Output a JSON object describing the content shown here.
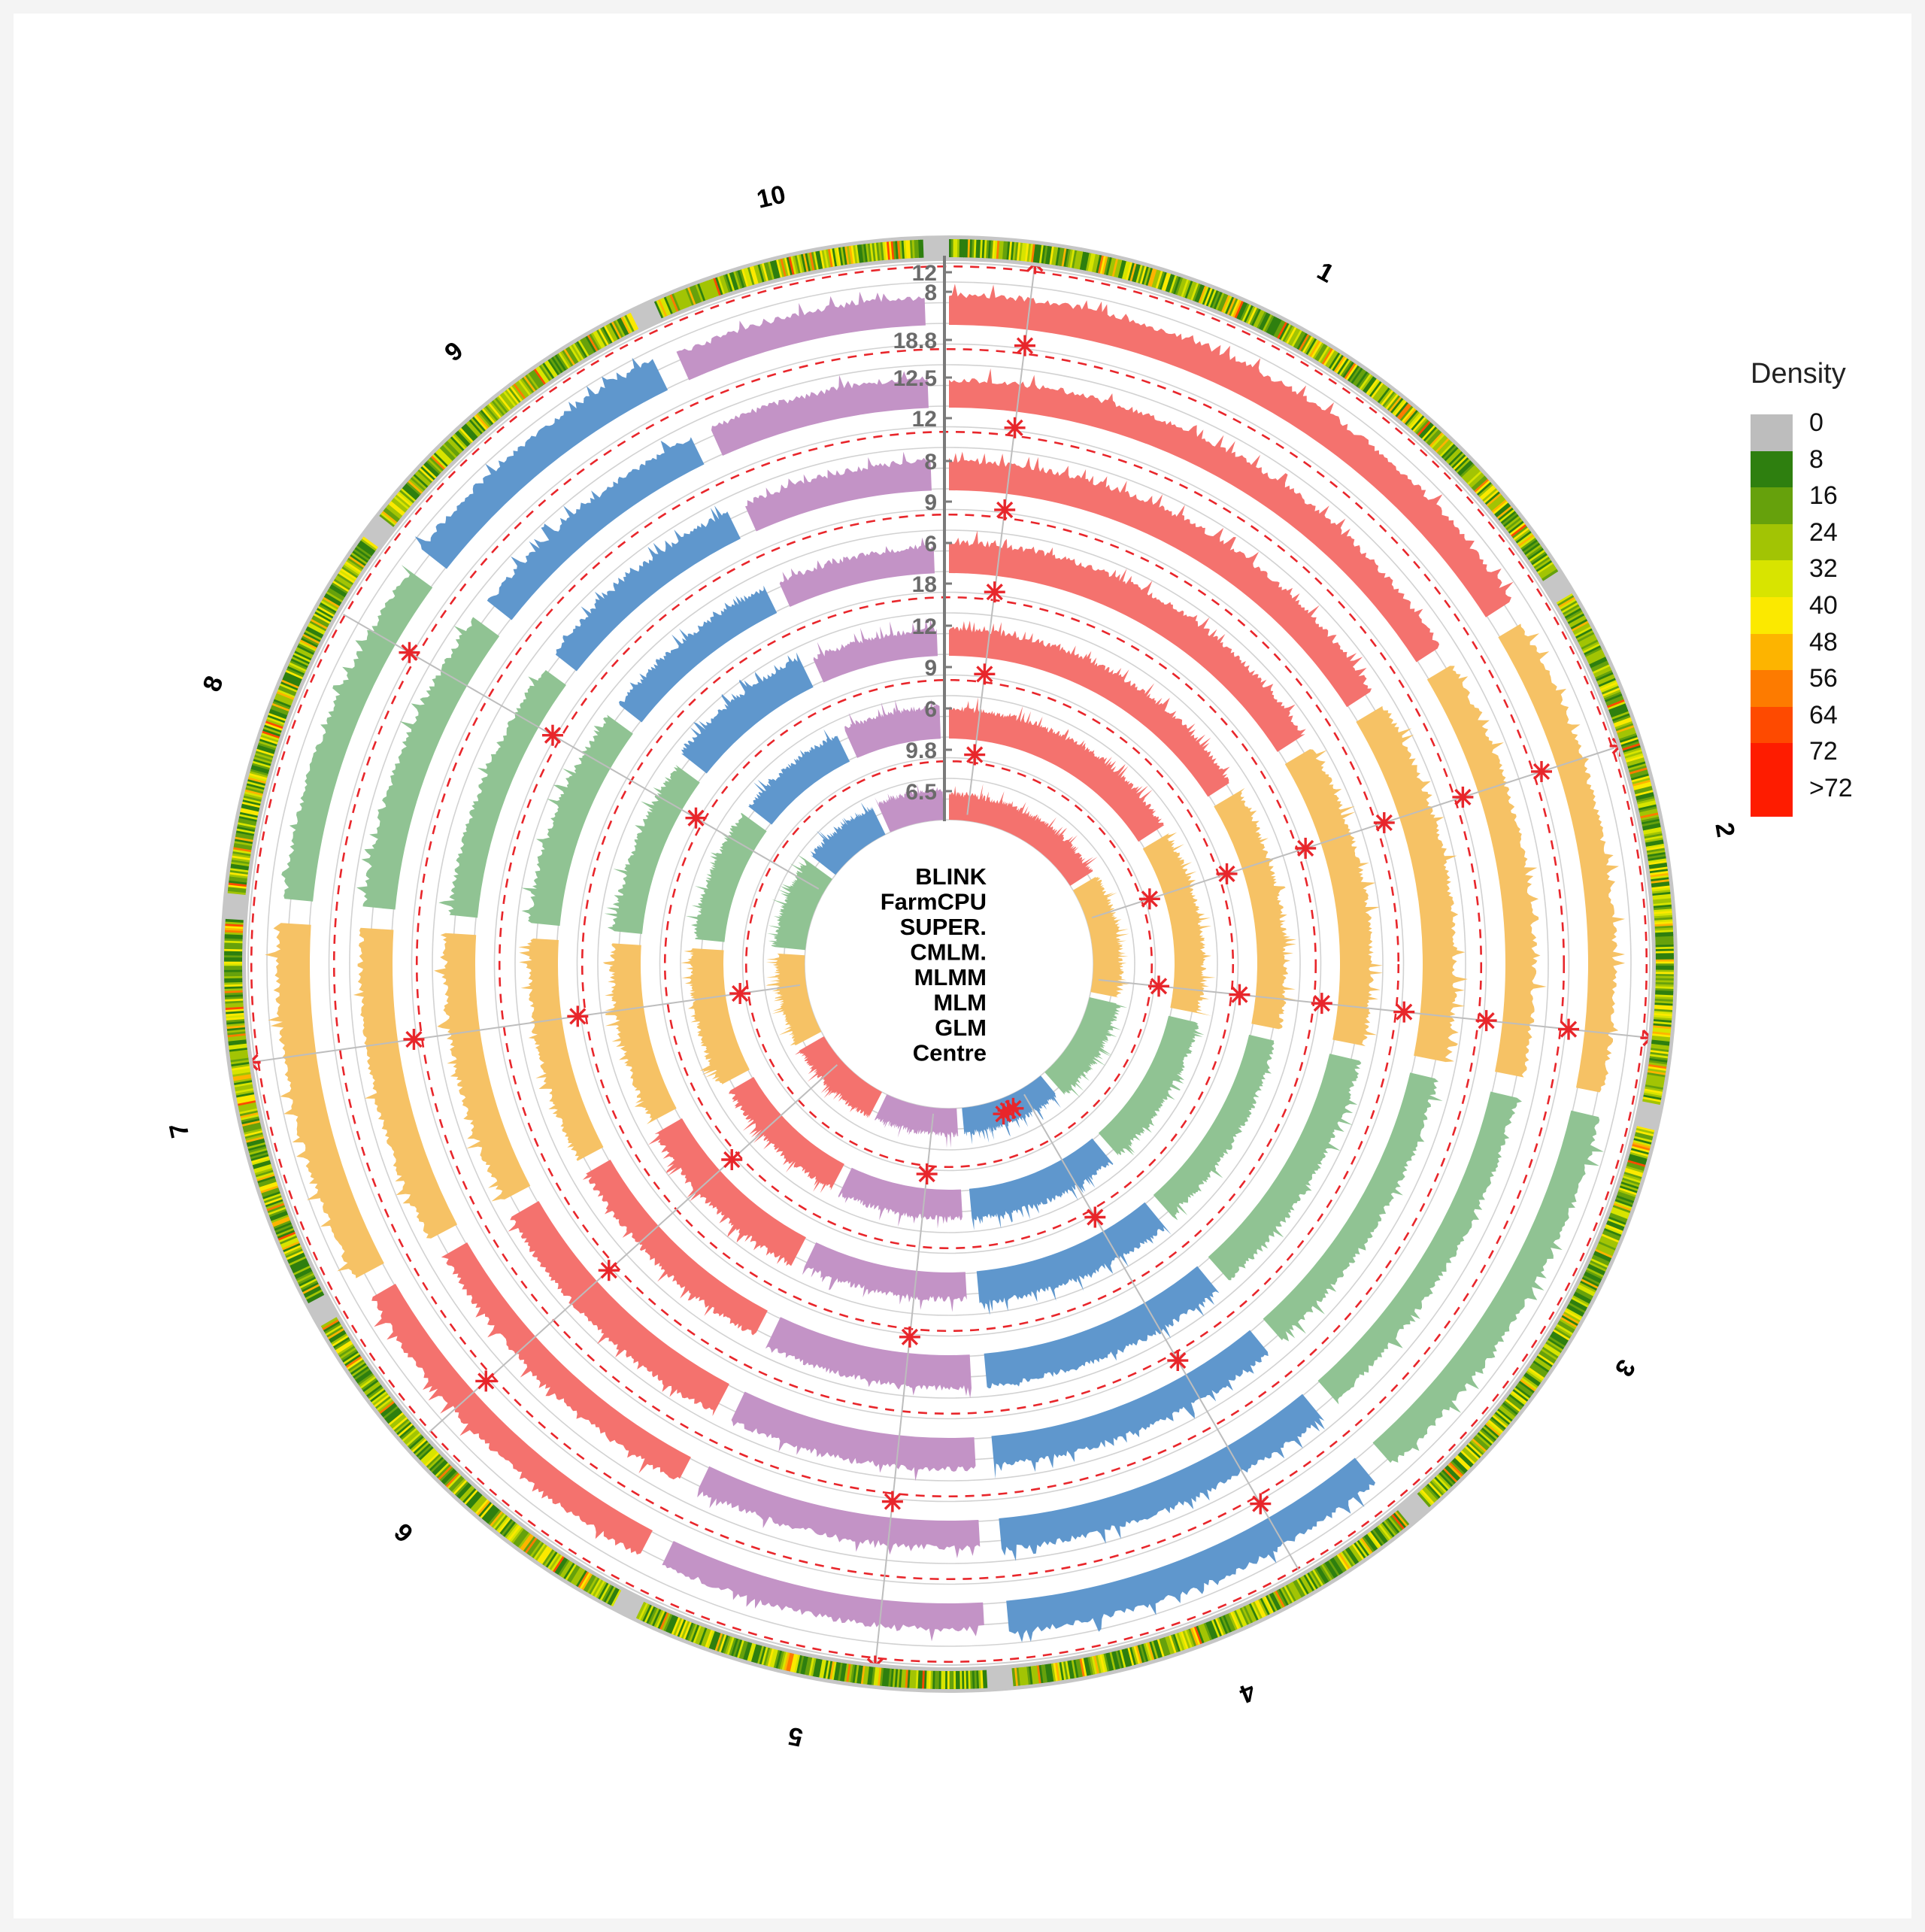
{
  "chart_data": {
    "type": "circular-manhattan",
    "title": "",
    "center_label": "Centre",
    "chromosomes": [
      "1",
      "2",
      "3",
      "4",
      "5",
      "6",
      "7",
      "8",
      "9",
      "10"
    ],
    "chromosome_colors": [
      "#f4726e",
      "#f6c265",
      "#90c393",
      "#5f97cd",
      "#c393c6",
      "#f4726e",
      "#f6c265",
      "#90c393",
      "#5f97cd",
      "#c393c6"
    ],
    "tracks_inner_to_outer": [
      {
        "method": "BLINK",
        "axis_ticks": [
          "6.5"
        ],
        "threshold_label": "6.5"
      },
      {
        "method": "FarmCPU",
        "axis_ticks": [
          "9.8",
          "6"
        ],
        "threshold_label": "6"
      },
      {
        "method": "SUPER.",
        "axis_ticks": [
          "9",
          "6"
        ],
        "threshold_label": "6"
      },
      {
        "method": "CMLM.",
        "axis_ticks": [
          "12",
          "9"
        ],
        "threshold_label": "9"
      },
      {
        "method": "MLMM",
        "axis_ticks": [
          "18",
          "6"
        ],
        "threshold_label": "6"
      },
      {
        "method": "MLM",
        "axis_ticks": [
          "9",
          "8"
        ],
        "threshold_label": "8"
      },
      {
        "method": "GLM",
        "axis_ticks": [
          "12",
          "12.5"
        ],
        "threshold_label": "12.5"
      }
    ],
    "outer_axis_ticks": [
      "18.8",
      "8",
      "12"
    ],
    "axis_tick_labels_top_to_bottom": [
      "12",
      "8",
      "18.8",
      "12.5",
      "12",
      "8",
      "9",
      "6",
      "18",
      "12",
      "9",
      "6",
      "9.8",
      "6.5"
    ],
    "threshold_line": {
      "style": "dashed",
      "color": "#e8262b"
    },
    "significant_marker": {
      "symbol": "asterisk",
      "color": "#e8262b"
    },
    "significant_hits": [
      {
        "chromosome": "1",
        "tracks": "all",
        "note": "aligned radial line near chr1 start"
      },
      {
        "chromosome": "2",
        "tracks": "all",
        "note": "two radial lines on chr2"
      },
      {
        "chromosome": "3",
        "tracks": "outer",
        "note": "radial line at chr3 end"
      },
      {
        "chromosome": "4",
        "tracks": "BLINK",
        "note": "cluster near chr4 start"
      },
      {
        "chromosome": "5",
        "tracks": "MLM",
        "note": "single hit"
      },
      {
        "chromosome": "6",
        "tracks": "all",
        "note": "radial line near chr6 end"
      },
      {
        "chromosome": "7",
        "tracks": "inner",
        "note": "hits near chr7 end"
      },
      {
        "chromosome": "8",
        "tracks": "all",
        "note": "radial line near chr8 start/end"
      },
      {
        "chromosome": "9",
        "tracks": "BLINK",
        "note": "hit at chr9"
      }
    ],
    "density_ring": {
      "position": "outermost",
      "gap_color": "#c6c6c6"
    }
  },
  "legend": {
    "title": "Density",
    "items": [
      {
        "label": "0",
        "color": "#bdbdbd"
      },
      {
        "label": "8",
        "color": "#2e7f0f"
      },
      {
        "label": "16",
        "color": "#66a10c"
      },
      {
        "label": "24",
        "color": "#a2c404"
      },
      {
        "label": "32",
        "color": "#d8e400"
      },
      {
        "label": "40",
        "color": "#fbe900"
      },
      {
        "label": "48",
        "color": "#fdb400"
      },
      {
        "label": "56",
        "color": "#fd7b00"
      },
      {
        "label": "64",
        "color": "#fe4a00"
      },
      {
        "label": ">72",
        "color": "#fe1c00",
        "span": 2
      }
    ],
    "labels_all": [
      "0",
      "8",
      "16",
      "24",
      "32",
      "40",
      "48",
      "56",
      "64",
      "72",
      ">72"
    ]
  },
  "center_labels": [
    "BLINK",
    "FarmCPU",
    "SUPER.",
    "CMLM.",
    "MLMM",
    "MLM",
    "GLM",
    "Centre"
  ],
  "center_label_colors": {
    "default": "#000000",
    "Centre": "#ff0000"
  }
}
